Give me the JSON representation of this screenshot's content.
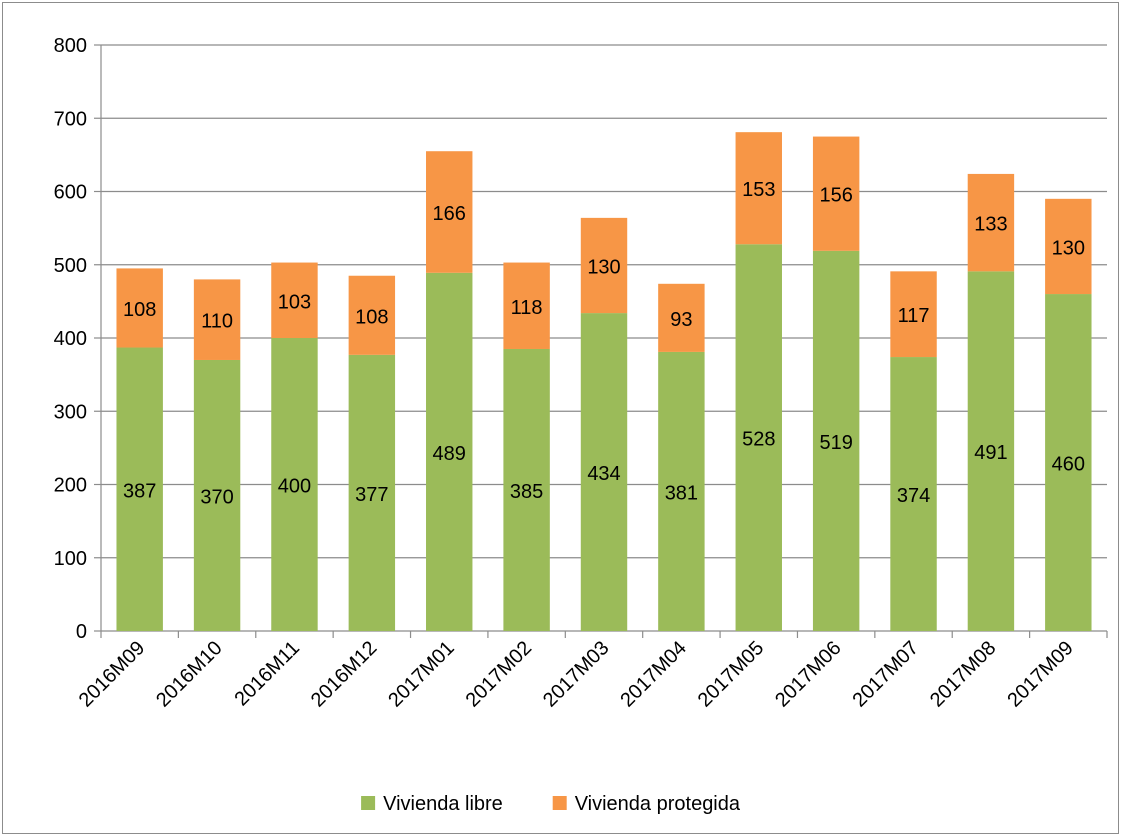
{
  "chart_data": {
    "type": "bar",
    "stacked": true,
    "categories": [
      "2016M09",
      "2016M10",
      "2016M11",
      "2016M12",
      "2017M01",
      "2017M02",
      "2017M03",
      "2017M04",
      "2017M05",
      "2017M06",
      "2017M07",
      "2017M08",
      "2017M09"
    ],
    "series": [
      {
        "name": "Vivienda libre",
        "color": "#9bbb59",
        "values": [
          387,
          370,
          400,
          377,
          489,
          385,
          434,
          381,
          528,
          519,
          374,
          491,
          460
        ]
      },
      {
        "name": "Vivienda protegida",
        "color": "#f79646",
        "values": [
          108,
          110,
          103,
          108,
          166,
          118,
          130,
          93,
          153,
          156,
          117,
          133,
          130
        ]
      }
    ],
    "ylim": [
      0,
      800
    ],
    "yticks": [
      0,
      100,
      200,
      300,
      400,
      500,
      600,
      700,
      800
    ],
    "grid": true,
    "legend_position": "bottom",
    "title": "",
    "xlabel": "",
    "ylabel": ""
  }
}
